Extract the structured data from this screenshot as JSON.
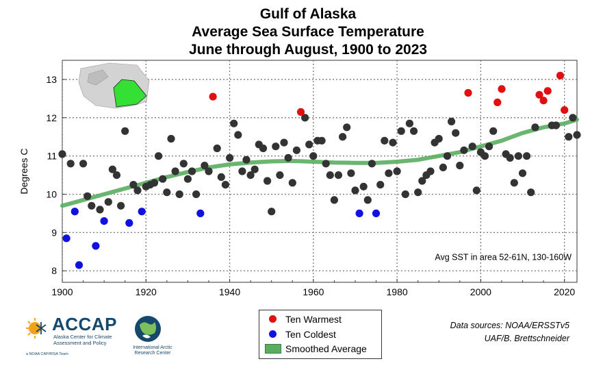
{
  "title": {
    "line1": "Gulf of Alaska",
    "line2": "Average Sea Surface Temperature",
    "line3": "June through August, 1900 to 2023"
  },
  "chart_data": {
    "type": "scatter",
    "title": "Gulf of Alaska Average Sea Surface Temperature June through August, 1900 to 2023",
    "xlabel": "",
    "ylabel": "Degrees C",
    "xlim": [
      1900,
      2023
    ],
    "ylim": [
      7.7,
      13.5
    ],
    "x_ticks": [
      1900,
      1920,
      1940,
      1960,
      1980,
      2000,
      2020
    ],
    "y_ticks": [
      8,
      9,
      10,
      11,
      12,
      13
    ],
    "grid": true,
    "annotation": "Avg SST in area 52-61N, 130-160W",
    "series": [
      {
        "name": "Ten Warmest",
        "color": "#e01010",
        "points": [
          [
            1936,
            12.55
          ],
          [
            1957,
            12.15
          ],
          [
            1997,
            12.65
          ],
          [
            2004,
            12.4
          ],
          [
            2005,
            12.75
          ],
          [
            2014,
            12.6
          ],
          [
            2015,
            12.45
          ],
          [
            2016,
            12.7
          ],
          [
            2019,
            13.1
          ],
          [
            2020,
            12.2
          ]
        ]
      },
      {
        "name": "Ten Coldest",
        "color": "#1010e0",
        "points": [
          [
            1901,
            8.85
          ],
          [
            1903,
            9.55
          ],
          [
            1904,
            8.15
          ],
          [
            1908,
            8.65
          ],
          [
            1910,
            9.3
          ],
          [
            1916,
            9.25
          ],
          [
            1919,
            9.55
          ],
          [
            1933,
            9.5
          ],
          [
            1971,
            9.5
          ],
          [
            1975,
            9.5
          ]
        ]
      },
      {
        "name": "",
        "color": "#333333",
        "points": [
          [
            1900,
            11.05
          ],
          [
            1902,
            10.8
          ],
          [
            1905,
            10.8
          ],
          [
            1906,
            9.95
          ],
          [
            1907,
            9.7
          ],
          [
            1909,
            9.6
          ],
          [
            1911,
            9.8
          ],
          [
            1912,
            10.65
          ],
          [
            1913,
            10.5
          ],
          [
            1914,
            9.7
          ],
          [
            1915,
            11.65
          ],
          [
            1917,
            10.25
          ],
          [
            1918,
            10.1
          ],
          [
            1920,
            10.2
          ],
          [
            1921,
            10.25
          ],
          [
            1922,
            10.3
          ],
          [
            1923,
            11.0
          ],
          [
            1924,
            10.4
          ],
          [
            1925,
            10.05
          ],
          [
            1926,
            11.45
          ],
          [
            1927,
            10.6
          ],
          [
            1928,
            10.0
          ],
          [
            1929,
            10.8
          ],
          [
            1930,
            10.4
          ],
          [
            1931,
            10.6
          ],
          [
            1932,
            10.0
          ],
          [
            1934,
            10.75
          ],
          [
            1935,
            10.6
          ],
          [
            1937,
            11.2
          ],
          [
            1938,
            10.45
          ],
          [
            1939,
            10.25
          ],
          [
            1940,
            10.95
          ],
          [
            1941,
            11.85
          ],
          [
            1942,
            11.55
          ],
          [
            1943,
            10.6
          ],
          [
            1944,
            10.9
          ],
          [
            1945,
            10.5
          ],
          [
            1946,
            10.65
          ],
          [
            1947,
            11.3
          ],
          [
            1948,
            11.2
          ],
          [
            1949,
            10.35
          ],
          [
            1950,
            9.55
          ],
          [
            1951,
            11.25
          ],
          [
            1952,
            10.5
          ],
          [
            1953,
            11.35
          ],
          [
            1954,
            10.95
          ],
          [
            1955,
            10.3
          ],
          [
            1956,
            11.15
          ],
          [
            1958,
            12.0
          ],
          [
            1959,
            11.3
          ],
          [
            1960,
            11.0
          ],
          [
            1961,
            11.4
          ],
          [
            1962,
            11.4
          ],
          [
            1963,
            10.8
          ],
          [
            1964,
            10.5
          ],
          [
            1965,
            9.85
          ],
          [
            1966,
            10.5
          ],
          [
            1967,
            11.5
          ],
          [
            1968,
            11.75
          ],
          [
            1969,
            10.55
          ],
          [
            1970,
            10.1
          ],
          [
            1972,
            10.2
          ],
          [
            1973,
            9.85
          ],
          [
            1974,
            10.8
          ],
          [
            1976,
            10.25
          ],
          [
            1977,
            11.4
          ],
          [
            1978,
            10.55
          ],
          [
            1979,
            11.35
          ],
          [
            1980,
            10.6
          ],
          [
            1981,
            11.65
          ],
          [
            1982,
            10.0
          ],
          [
            1983,
            11.85
          ],
          [
            1984,
            11.65
          ],
          [
            1985,
            10.05
          ],
          [
            1986,
            10.35
          ],
          [
            1987,
            10.5
          ],
          [
            1988,
            10.6
          ],
          [
            1989,
            11.35
          ],
          [
            1990,
            11.45
          ],
          [
            1991,
            10.7
          ],
          [
            1992,
            11.0
          ],
          [
            1993,
            11.9
          ],
          [
            1994,
            11.6
          ],
          [
            1995,
            10.75
          ],
          [
            1996,
            11.15
          ],
          [
            1998,
            11.25
          ],
          [
            1999,
            10.1
          ],
          [
            2000,
            11.1
          ],
          [
            2001,
            11.0
          ],
          [
            2002,
            11.25
          ],
          [
            2003,
            11.65
          ],
          [
            2006,
            11.05
          ],
          [
            2007,
            10.95
          ],
          [
            2008,
            10.3
          ],
          [
            2009,
            11.0
          ],
          [
            2010,
            10.55
          ],
          [
            2011,
            11.0
          ],
          [
            2012,
            10.05
          ],
          [
            2013,
            11.75
          ],
          [
            2017,
            11.8
          ],
          [
            2018,
            11.8
          ],
          [
            2021,
            11.5
          ],
          [
            2022,
            12.0
          ],
          [
            2023,
            11.55
          ]
        ]
      },
      {
        "name": "Smoothed Average",
        "color": "#5aad5f",
        "type": "line",
        "points": [
          [
            1900,
            9.7
          ],
          [
            1905,
            9.85
          ],
          [
            1910,
            10.0
          ],
          [
            1915,
            10.15
          ],
          [
            1920,
            10.3
          ],
          [
            1925,
            10.45
          ],
          [
            1930,
            10.58
          ],
          [
            1935,
            10.7
          ],
          [
            1940,
            10.78
          ],
          [
            1945,
            10.83
          ],
          [
            1950,
            10.86
          ],
          [
            1955,
            10.87
          ],
          [
            1960,
            10.85
          ],
          [
            1965,
            10.83
          ],
          [
            1970,
            10.82
          ],
          [
            1975,
            10.82
          ],
          [
            1980,
            10.85
          ],
          [
            1985,
            10.9
          ],
          [
            1990,
            11.0
          ],
          [
            1995,
            11.1
          ],
          [
            2000,
            11.25
          ],
          [
            2005,
            11.4
          ],
          [
            2010,
            11.6
          ],
          [
            2015,
            11.75
          ],
          [
            2020,
            11.85
          ],
          [
            2023,
            11.95
          ]
        ]
      }
    ]
  },
  "legend": {
    "warm_label": "Ten Warmest",
    "cold_label": "Ten Coldest",
    "smooth_label": "Smoothed Average"
  },
  "sources": {
    "line1": "Data sources: NOAA/ERSSTv5",
    "line2": "UAF/B. Brettschneider"
  },
  "logos": {
    "accap_name": "ACCAP",
    "accap_subtitle": "Alaska Center for Climate Assessment and Policy",
    "accap_bar": "a NOAA CAP/RISA Team",
    "iarc_text": "International Arctic Research Center"
  },
  "colors": {
    "warm": "#e01010",
    "cold": "#1010e0",
    "normal": "#333333",
    "smooth": "#5aad5f",
    "map_land": "#cccccc",
    "map_region": "#33e033"
  }
}
